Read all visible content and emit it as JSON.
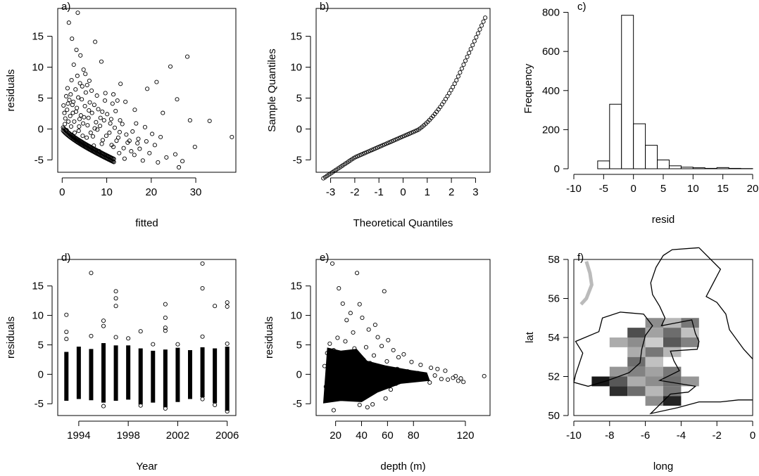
{
  "chart_data": [
    {
      "panel": "a)",
      "type": "scatter",
      "xlabel": "fitted",
      "ylabel": "residuals",
      "xlim": [
        -1,
        39
      ],
      "ylim": [
        -7,
        19.5
      ],
      "xticks": [
        0,
        10,
        20,
        30
      ],
      "yticks": [
        -5,
        0,
        5,
        10,
        15
      ],
      "points": [
        [
          1.5,
          17.2
        ],
        [
          3.5,
          18.8
        ],
        [
          2.2,
          14.6
        ],
        [
          3.2,
          12.8
        ],
        [
          4.1,
          11.9
        ],
        [
          2.6,
          10.4
        ],
        [
          7.4,
          14.1
        ],
        [
          5.2,
          8.9
        ],
        [
          8.8,
          10.9
        ],
        [
          6.1,
          7.8
        ],
        [
          13.1,
          7.3
        ],
        [
          4.5,
          6.9
        ],
        [
          11.5,
          5.6
        ],
        [
          14.2,
          4.4
        ],
        [
          16.3,
          3.1
        ],
        [
          9.6,
          4.6
        ],
        [
          19.1,
          6.5
        ],
        [
          21.2,
          7.6
        ],
        [
          24.3,
          10.1
        ],
        [
          25.8,
          4.8
        ],
        [
          28.1,
          11.7
        ],
        [
          22.6,
          2.6
        ],
        [
          33.1,
          1.3
        ],
        [
          28.7,
          1.4
        ],
        [
          38.1,
          -1.3
        ],
        [
          20.2,
          -0.8
        ],
        [
          25.4,
          -4.1
        ],
        [
          27.0,
          -5.2
        ],
        [
          29.8,
          -2.9
        ],
        [
          19.6,
          -3.9
        ],
        [
          18.1,
          -5.1
        ],
        [
          17.4,
          -3.2
        ],
        [
          16.2,
          -4.2
        ],
        [
          15.1,
          -1.9
        ],
        [
          14.0,
          -4.8
        ],
        [
          12.8,
          -3.9
        ],
        [
          11.5,
          -2.9
        ],
        [
          10.3,
          -4.4
        ],
        [
          9.1,
          -1.8
        ],
        [
          8.3,
          -3.6
        ],
        [
          7.1,
          -2.7
        ],
        [
          6.4,
          -0.6
        ],
        [
          5.5,
          -1.4
        ],
        [
          4.7,
          0.9
        ],
        [
          3.9,
          1.6
        ],
        [
          3.1,
          2.8
        ],
        [
          2.3,
          3.9
        ],
        [
          1.6,
          4.7
        ],
        [
          0.9,
          5.3
        ],
        [
          0.5,
          2.6
        ],
        [
          1.1,
          3.1
        ],
        [
          1.8,
          2.1
        ],
        [
          2.7,
          1.2
        ],
        [
          3.3,
          3.4
        ],
        [
          4.2,
          2.2
        ],
        [
          5.1,
          3.7
        ],
        [
          5.9,
          1.8
        ],
        [
          6.7,
          2.6
        ],
        [
          7.6,
          1.1
        ],
        [
          8.5,
          0.5
        ],
        [
          9.4,
          1.4
        ],
        [
          10.6,
          -0.6
        ],
        [
          11.8,
          0.2
        ],
        [
          12.6,
          -1.4
        ],
        [
          13.5,
          0.8
        ],
        [
          14.7,
          -2.2
        ],
        [
          15.8,
          -0.4
        ],
        [
          17.1,
          -1.6
        ],
        [
          18.6,
          0.3
        ],
        [
          2.0,
          0.4
        ],
        [
          2.8,
          -0.6
        ],
        [
          3.7,
          -0.3
        ],
        [
          4.6,
          -1.1
        ],
        [
          5.7,
          0.6
        ],
        [
          6.9,
          -1.2
        ],
        [
          7.9,
          -0.1
        ],
        [
          8.9,
          -2.4
        ],
        [
          9.9,
          -1.1
        ],
        [
          11.1,
          -2.6
        ],
        [
          12.2,
          -1.9
        ],
        [
          13.8,
          -3.1
        ],
        [
          15.5,
          -3.6
        ],
        [
          16.9,
          -2.3
        ],
        [
          0.3,
          3.8
        ],
        [
          0.7,
          1.7
        ],
        [
          1.3,
          4.1
        ],
        [
          1.9,
          5.6
        ],
        [
          2.5,
          4.4
        ],
        [
          3.6,
          5.1
        ],
        [
          4.4,
          4.8
        ],
        [
          5.3,
          5.9
        ],
        [
          6.2,
          4.3
        ],
        [
          7.2,
          3.9
        ],
        [
          8.1,
          3.2
        ],
        [
          9.0,
          2.8
        ],
        [
          10.1,
          2.4
        ],
        [
          11.0,
          1.6
        ],
        [
          12.0,
          2.9
        ],
        [
          13.0,
          1.4
        ],
        [
          3.0,
          6.4
        ],
        [
          4.0,
          7.4
        ],
        [
          5.6,
          7.1
        ],
        [
          6.6,
          6.2
        ],
        [
          7.8,
          5.4
        ],
        [
          9.7,
          5.8
        ],
        [
          11.3,
          4.1
        ],
        [
          12.4,
          4.6
        ],
        [
          2.1,
          7.9
        ],
        [
          3.4,
          8.6
        ],
        [
          4.8,
          9.6
        ],
        [
          1.2,
          6.6
        ],
        [
          0.6,
          0.8
        ],
        [
          1.0,
          -0.2
        ],
        [
          1.4,
          1.2
        ],
        [
          2.4,
          2.6
        ],
        [
          3.8,
          0.4
        ],
        [
          4.9,
          1.9
        ],
        [
          6.0,
          3.0
        ],
        [
          7.3,
          0.1
        ],
        [
          8.6,
          1.8
        ],
        [
          10.8,
          0.9
        ],
        [
          12.9,
          -0.5
        ],
        [
          14.4,
          -0.9
        ],
        [
          16.6,
          0.9
        ],
        [
          18.9,
          -2.0
        ],
        [
          20.8,
          -2.6
        ],
        [
          22.1,
          -1.3
        ],
        [
          23.4,
          -4.6
        ],
        [
          26.2,
          -6.2
        ],
        [
          21.5,
          -5.4
        ]
      ]
    },
    {
      "panel": "b)",
      "type": "scatter",
      "xlabel": "Theoretical Quantiles",
      "ylabel": "Sample Quantiles",
      "xlim": [
        -3.6,
        3.6
      ],
      "ylim": [
        -7,
        19.5
      ],
      "xticks": [
        -3,
        -2,
        -1,
        0,
        1,
        2,
        3
      ],
      "yticks": [
        -5,
        0,
        5,
        10,
        15
      ]
    },
    {
      "panel": "c)",
      "type": "bar",
      "xlabel": "resid",
      "ylabel": "Frequency",
      "xlim": [
        -10,
        20
      ],
      "ylim": [
        0,
        820
      ],
      "xticks": [
        -10,
        -5,
        0,
        5,
        10,
        15,
        20
      ],
      "yticks": [
        0,
        200,
        400,
        600,
        800
      ],
      "bin_width": 2,
      "bin_start": -10,
      "values": [
        0,
        0,
        40,
        330,
        785,
        230,
        120,
        45,
        15,
        8,
        5,
        2,
        6,
        2,
        1
      ]
    },
    {
      "panel": "d)",
      "type": "scatter",
      "xlabel": "Year",
      "ylabel": "residuals",
      "xlim": [
        1992.3,
        2006.7
      ],
      "ylim": [
        -7,
        19.5
      ],
      "xticks": [
        1994,
        1998,
        2002,
        2006
      ],
      "yticks": [
        -5,
        0,
        5,
        10,
        15
      ],
      "year_ranges": [
        {
          "year": 1993,
          "min": -4.5,
          "max": 3.8
        },
        {
          "year": 1994,
          "min": -4.2,
          "max": 4.7
        },
        {
          "year": 1995,
          "min": -4.4,
          "max": 4.3
        },
        {
          "year": 1996,
          "min": -4.8,
          "max": 5.3
        },
        {
          "year": 1997,
          "min": -4.5,
          "max": 4.9
        },
        {
          "year": 1998,
          "min": -4.3,
          "max": 4.9
        },
        {
          "year": 1999,
          "min": -5.1,
          "max": 4.4
        },
        {
          "year": 2000,
          "min": -4.8,
          "max": 4.0
        },
        {
          "year": 2001,
          "min": -5.6,
          "max": 4.2
        },
        {
          "year": 2002,
          "min": -4.7,
          "max": 4.5
        },
        {
          "year": 2003,
          "min": -4.2,
          "max": 4.1
        },
        {
          "year": 2004,
          "min": -3.9,
          "max": 4.6
        },
        {
          "year": 2005,
          "min": -4.9,
          "max": 4.4
        },
        {
          "year": 2006,
          "min": -6.2,
          "max": 4.7
        }
      ],
      "outliers": [
        [
          1993,
          10.1
        ],
        [
          1993,
          7.2
        ],
        [
          1993,
          6.0
        ],
        [
          1995,
          17.2
        ],
        [
          1995,
          6.5
        ],
        [
          1996,
          9.1
        ],
        [
          1996,
          8.2
        ],
        [
          1997,
          14.1
        ],
        [
          1997,
          12.9
        ],
        [
          1997,
          11.6
        ],
        [
          1997,
          6.3
        ],
        [
          1998,
          6.1
        ],
        [
          1999,
          7.3
        ],
        [
          2000,
          5.1
        ],
        [
          2001,
          11.9
        ],
        [
          2001,
          9.6
        ],
        [
          2001,
          7.9
        ],
        [
          2001,
          7.4
        ],
        [
          2002,
          5.1
        ],
        [
          2004,
          18.8
        ],
        [
          2004,
          14.6
        ],
        [
          2004,
          6.4
        ],
        [
          2005,
          11.6
        ],
        [
          2006,
          12.2
        ],
        [
          2006,
          11.5
        ],
        [
          2006,
          5.2
        ],
        [
          2005,
          -5.2
        ],
        [
          2004,
          -4.2
        ],
        [
          2001,
          -5.8
        ],
        [
          1999,
          -5.3
        ],
        [
          1996,
          -5.4
        ],
        [
          2006,
          -6.3
        ]
      ]
    },
    {
      "panel": "e)",
      "type": "scatter",
      "xlabel": "depth (m)",
      "ylabel": "residuals",
      "xlim": [
        5,
        139
      ],
      "ylim": [
        -7,
        19.5
      ],
      "xticks": [
        20,
        40,
        60,
        80,
        120
      ],
      "yticks": [
        -5,
        0,
        5,
        10,
        15
      ],
      "points": [
        [
          17.5,
          18.8
        ],
        [
          36.5,
          17.2
        ],
        [
          22.5,
          14.6
        ],
        [
          57.5,
          14.1
        ],
        [
          25.5,
          12.0
        ],
        [
          38.5,
          11.9
        ],
        [
          31.5,
          10.4
        ],
        [
          28.5,
          9.2
        ],
        [
          40.5,
          9.6
        ],
        [
          45.5,
          7.6
        ],
        [
          50.5,
          8.4
        ],
        [
          33.5,
          7.1
        ],
        [
          52.5,
          6.3
        ],
        [
          55.5,
          4.8
        ],
        [
          60.5,
          5.8
        ],
        [
          64.5,
          4.1
        ],
        [
          68.5,
          2.9
        ],
        [
          72.5,
          3.4
        ],
        [
          78.5,
          2.1
        ],
        [
          85.5,
          1.6
        ],
        [
          93.5,
          1.1
        ],
        [
          98.5,
          0.9
        ],
        [
          104.5,
          0.6
        ],
        [
          110.5,
          -0.6
        ],
        [
          114.5,
          -1.1
        ],
        [
          118.5,
          -1.3
        ],
        [
          134.5,
          -0.3
        ],
        [
          101.5,
          -0.8
        ],
        [
          92.5,
          -1.4
        ],
        [
          82.5,
          -0.9
        ],
        [
          74.5,
          -0.4
        ],
        [
          66.5,
          -1.6
        ],
        [
          62.5,
          -2.6
        ],
        [
          58.5,
          -4.1
        ],
        [
          48.5,
          -5.1
        ],
        [
          44.5,
          -5.6
        ],
        [
          38.5,
          -5.2
        ],
        [
          18.5,
          -6.1
        ],
        [
          12.5,
          -2.1
        ],
        [
          11.5,
          1.4
        ],
        [
          13.5,
          3.6
        ],
        [
          15.5,
          5.2
        ],
        [
          18.5,
          4.1
        ],
        [
          21.5,
          6.2
        ],
        [
          24.5,
          3.3
        ],
        [
          27.5,
          5.6
        ],
        [
          30.5,
          2.7
        ],
        [
          34.5,
          4.4
        ],
        [
          37.5,
          3.1
        ],
        [
          41.5,
          2.5
        ],
        [
          43.5,
          4.6
        ],
        [
          46.5,
          1.9
        ],
        [
          49.5,
          3.2
        ],
        [
          53.5,
          1.4
        ],
        [
          56.5,
          0.9
        ],
        [
          59.5,
          2.2
        ],
        [
          63.5,
          0.4
        ],
        [
          67.5,
          0.9
        ],
        [
          71.5,
          -0.2
        ],
        [
          75.5,
          0.5
        ],
        [
          79.5,
          -0.6
        ],
        [
          83.5,
          0.2
        ],
        [
          88.5,
          -0.5
        ],
        [
          96.5,
          -0.2
        ],
        [
          106.5,
          -0.9
        ],
        [
          112.5,
          -0.3
        ],
        [
          116.5,
          -0.7
        ]
      ]
    },
    {
      "panel": "f)",
      "type": "heatmap",
      "xlabel": "long",
      "ylabel": "lat",
      "xlim": [
        -10,
        0
      ],
      "ylim": [
        50,
        58
      ],
      "xticks": [
        -10,
        -8,
        -6,
        -4,
        -2,
        0
      ],
      "yticks": [
        50,
        52,
        54,
        56,
        58
      ],
      "cell_size": [
        1,
        0.5
      ],
      "cells": [
        {
          "long": -5.5,
          "lat": 54.75,
          "value": 0.45
        },
        {
          "long": -4.5,
          "lat": 54.75,
          "value": 0.25
        },
        {
          "long": -3.5,
          "lat": 54.75,
          "value": 0.55
        },
        {
          "long": -6.5,
          "lat": 54.25,
          "value": 0.75
        },
        {
          "long": -5.5,
          "lat": 54.25,
          "value": 0.35
        },
        {
          "long": -4.5,
          "lat": 54.25,
          "value": 0.6
        },
        {
          "long": -3.5,
          "lat": 54.25,
          "value": 0.2
        },
        {
          "long": -7.5,
          "lat": 53.75,
          "value": 0.3
        },
        {
          "long": -6.5,
          "lat": 53.75,
          "value": 0.45
        },
        {
          "long": -5.5,
          "lat": 53.75,
          "value": 0.15
        },
        {
          "long": -4.5,
          "lat": 53.75,
          "value": 0.7
        },
        {
          "long": -3.5,
          "lat": 53.75,
          "value": 0.5
        },
        {
          "long": -6.5,
          "lat": 53.25,
          "value": 0.3
        },
        {
          "long": -5.5,
          "lat": 53.25,
          "value": 0.55
        },
        {
          "long": -4.5,
          "lat": 53.25,
          "value": 0.25
        },
        {
          "long": -6.5,
          "lat": 52.75,
          "value": 0.6
        },
        {
          "long": -5.5,
          "lat": 52.75,
          "value": 0.2
        },
        {
          "long": -7.5,
          "lat": 52.25,
          "value": 0.4
        },
        {
          "long": -6.5,
          "lat": 52.25,
          "value": 0.5
        },
        {
          "long": -5.5,
          "lat": 52.25,
          "value": 0.35
        },
        {
          "long": -4.5,
          "lat": 52.25,
          "value": 0.55
        },
        {
          "long": -8.5,
          "lat": 51.75,
          "value": 1.0
        },
        {
          "long": -7.5,
          "lat": 51.75,
          "value": 0.7
        },
        {
          "long": -6.5,
          "lat": 51.75,
          "value": 0.3
        },
        {
          "long": -5.5,
          "lat": 51.75,
          "value": 0.45
        },
        {
          "long": -4.5,
          "lat": 51.75,
          "value": 0.6
        },
        {
          "long": -3.5,
          "lat": 51.75,
          "value": 0.4
        },
        {
          "long": -7.5,
          "lat": 51.25,
          "value": 0.9
        },
        {
          "long": -6.5,
          "lat": 51.25,
          "value": 0.6
        },
        {
          "long": -5.5,
          "lat": 51.25,
          "value": 0.25
        },
        {
          "long": -4.5,
          "lat": 51.25,
          "value": 0.55
        },
        {
          "long": -5.5,
          "lat": 50.75,
          "value": 0.45
        },
        {
          "long": -4.5,
          "lat": 50.75,
          "value": 0.95
        }
      ]
    }
  ]
}
